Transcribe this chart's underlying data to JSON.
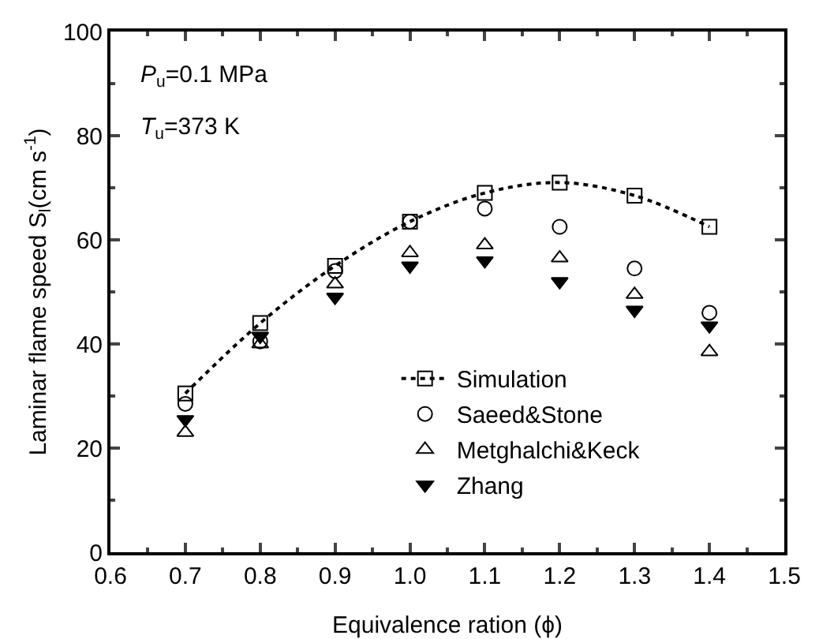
{
  "chart_data": {
    "type": "scatter",
    "xlabel": "Equivalence ration (ϕ)",
    "ylabel": "Laminar flame speed S$_{l}$(cm s$^{-1}$)",
    "annotations": [
      "P$_{u}$=0.1 MPa",
      "T$_{u}$=373 K"
    ],
    "x": [
      0.7,
      0.8,
      0.9,
      1.0,
      1.1,
      1.2,
      1.3,
      1.4
    ],
    "series": [
      {
        "name": "Simulation",
        "type": "line",
        "line_style": "dotted",
        "marker": "square",
        "color": "#000000",
        "values": [
          30.5,
          44,
          55,
          63.5,
          69,
          71,
          68.5,
          62.5
        ]
      },
      {
        "name": "Saeed&Stone",
        "marker": "circle",
        "color": "#000000",
        "values": [
          28.5,
          40.5,
          54,
          63.5,
          66,
          62.5,
          54.5,
          46
        ]
      },
      {
        "name": "Metghalchi&Keck",
        "marker": "triangle",
        "color": "#000000",
        "values": [
          23,
          40,
          51.5,
          57.5,
          59,
          56.5,
          49.5,
          38.5
        ]
      },
      {
        "name": "Zhang",
        "marker": "triangle-down-filled",
        "color": "#000000",
        "values": [
          25.5,
          41.5,
          49,
          55,
          56,
          52,
          46.5,
          43.5
        ]
      }
    ],
    "xlim": [
      0.6,
      1.5
    ],
    "xticks": [
      0.6,
      {
        "value": 0.7,
        "label": "0.7"
      },
      {
        "value": 0.8,
        "label": "0.8"
      },
      {
        "value": 0.9,
        "label": "0.9"
      },
      {
        "value": 1.0,
        "label": "1.0"
      },
      {
        "value": 1.1,
        "label": "1.1"
      },
      {
        "value": 1.2,
        "label": "1.2"
      },
      {
        "value": 1.3,
        "label": "1.3"
      },
      {
        "value": 1.4,
        "label": "1.4"
      },
      1.5
    ],
    "ylim": [
      0,
      100
    ],
    "yticks": [
      0,
      20,
      40,
      60,
      80,
      100
    ],
    "grid": false,
    "legend": "bottom"
  }
}
